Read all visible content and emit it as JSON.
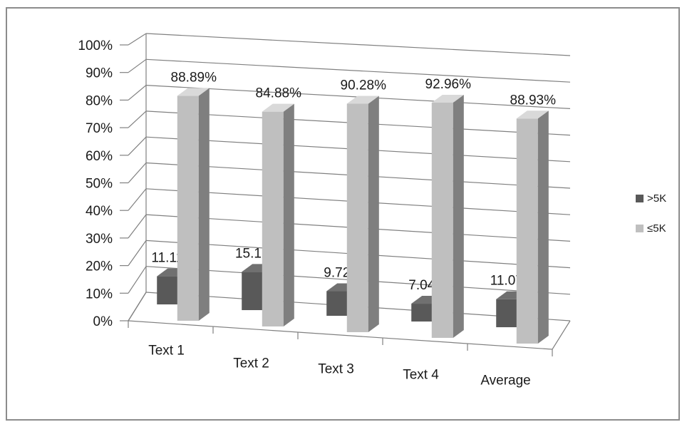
{
  "chart_data": {
    "type": "bar",
    "categories": [
      "Text 1",
      "Text 2",
      "Text 3",
      "Text 4",
      "Average"
    ],
    "series": [
      {
        "name": ">5K",
        "values": [
          11.11,
          15.12,
          9.72,
          7.04,
          11.07
        ],
        "labels": [
          "11.11%",
          "15.12%",
          "9.72%",
          "7.04%",
          "11.07%"
        ]
      },
      {
        "name": "≤5K",
        "values": [
          88.89,
          84.88,
          90.28,
          92.96,
          88.93
        ],
        "labels": [
          "88.89%",
          "84.88%",
          "90.28%",
          "92.96%",
          "88.93%"
        ]
      }
    ],
    "yticks": [
      "0%",
      "10%",
      "20%",
      "30%",
      "40%",
      "50%",
      "60%",
      "70%",
      "80%",
      "90%",
      "100%"
    ],
    "ylim": [
      0,
      100
    ],
    "grid": true,
    "legend": "right",
    "style": "3d-clustered-column",
    "colors": {
      ">5K": "#595959",
      "≤5K": "#bfbfbf",
      "grid": "#808080"
    }
  }
}
